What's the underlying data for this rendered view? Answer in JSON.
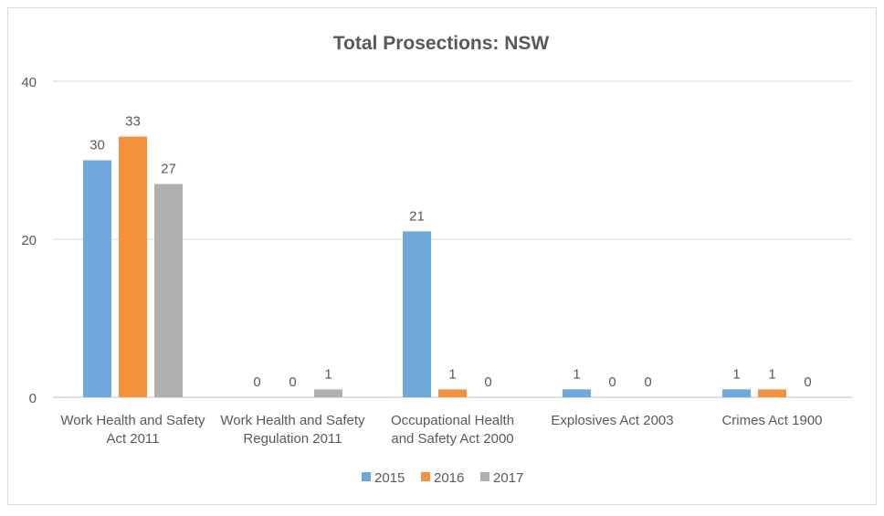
{
  "chart_data": {
    "type": "bar",
    "title": "Total Prosections: NSW",
    "categories": [
      [
        "Work Health and Safety",
        "Act 2011"
      ],
      [
        "Work Health and Safety",
        "Regulation 2011"
      ],
      [
        "Occupational Health",
        "and Safety Act 2000"
      ],
      [
        "Explosives Act 2003"
      ],
      [
        "Crimes Act 1900"
      ]
    ],
    "series": [
      {
        "name": "2015",
        "color": "#6fa8dc",
        "values": [
          30,
          0,
          21,
          1,
          1
        ]
      },
      {
        "name": "2016",
        "color": "#f4923d",
        "values": [
          33,
          0,
          1,
          0,
          1
        ]
      },
      {
        "name": "2017",
        "color": "#b0b0b0",
        "values": [
          27,
          1,
          0,
          0,
          0
        ]
      }
    ],
    "yticks": [
      0,
      20,
      40
    ],
    "ylim": [
      0,
      40
    ],
    "grid": true,
    "legend_position": "bottom"
  }
}
